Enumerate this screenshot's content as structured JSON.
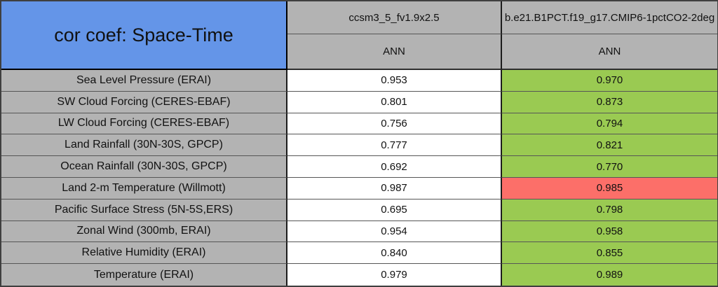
{
  "table": {
    "title": "cor coef: Space-Time",
    "columns": [
      {
        "model": "ccsm3_5_fv1.9x2.5",
        "season": "ANN"
      },
      {
        "model": "b.e21.B1PCT.f19_g17.CMIP6-1pctCO2-2deg",
        "season": "ANN"
      }
    ],
    "rows": [
      {
        "label": "Sea Level Pressure (ERAI)",
        "model1": "0.953",
        "model2": "0.970",
        "model2_status": "better"
      },
      {
        "label": "SW Cloud Forcing (CERES-EBAF)",
        "model1": "0.801",
        "model2": "0.873",
        "model2_status": "better"
      },
      {
        "label": "LW Cloud Forcing (CERES-EBAF)",
        "model1": "0.756",
        "model2": "0.794",
        "model2_status": "better"
      },
      {
        "label": "Land Rainfall (30N-30S, GPCP)",
        "model1": "0.777",
        "model2": "0.821",
        "model2_status": "better"
      },
      {
        "label": "Ocean Rainfall (30N-30S, GPCP)",
        "model1": "0.692",
        "model2": "0.770",
        "model2_status": "better"
      },
      {
        "label": "Land 2-m Temperature (Willmott)",
        "model1": "0.987",
        "model2": "0.985",
        "model2_status": "worse"
      },
      {
        "label": "Pacific Surface Stress (5N-5S,ERS)",
        "model1": "0.695",
        "model2": "0.798",
        "model2_status": "better"
      },
      {
        "label": "Zonal Wind (300mb, ERAI)",
        "model1": "0.954",
        "model2": "0.958",
        "model2_status": "better"
      },
      {
        "label": "Relative Humidity (ERAI)",
        "model1": "0.840",
        "model2": "0.855",
        "model2_status": "better"
      },
      {
        "label": "Temperature (ERAI)",
        "model1": "0.979",
        "model2": "0.989",
        "model2_status": "better"
      }
    ]
  },
  "colors": {
    "title_bg": "#6495E8",
    "header_bg": "#B3B3B3",
    "label_bg": "#B3B3B3",
    "value_bg": "#FFFFFF",
    "better_bg": "#9ACA52",
    "worse_bg": "#FC6F69"
  },
  "chart_data": {
    "type": "table",
    "title": "cor coef: Space-Time",
    "columns": [
      "ccsm3_5_fv1.9x2.5 (ANN)",
      "b.e21.B1PCT.f19_g17.CMIP6-1pctCO2-2deg (ANN)"
    ],
    "rows": [
      "Sea Level Pressure (ERAI)",
      "SW Cloud Forcing (CERES-EBAF)",
      "LW Cloud Forcing (CERES-EBAF)",
      "Land Rainfall (30N-30S, GPCP)",
      "Ocean Rainfall (30N-30S, GPCP)",
      "Land 2-m Temperature (Willmott)",
      "Pacific Surface Stress (5N-5S,ERS)",
      "Zonal Wind (300mb, ERAI)",
      "Relative Humidity (ERAI)",
      "Temperature (ERAI)"
    ],
    "values": [
      [
        0.953,
        0.97
      ],
      [
        0.801,
        0.873
      ],
      [
        0.756,
        0.794
      ],
      [
        0.777,
        0.821
      ],
      [
        0.692,
        0.77
      ],
      [
        0.987,
        0.985
      ],
      [
        0.695,
        0.798
      ],
      [
        0.954,
        0.958
      ],
      [
        0.84,
        0.855
      ],
      [
        0.979,
        0.989
      ]
    ],
    "highlight_legend": "green cell = second model better than first, red cell = second model worse"
  }
}
